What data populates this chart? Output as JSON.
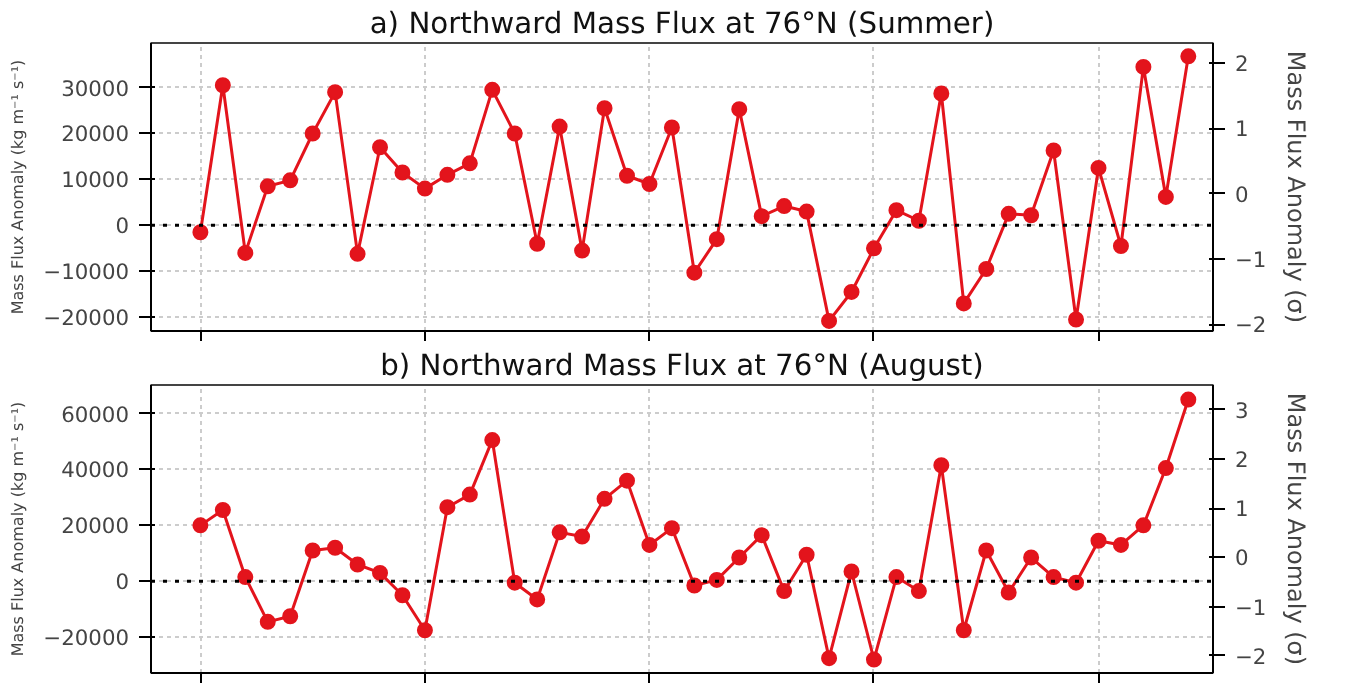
{
  "chart_data": [
    {
      "type": "line",
      "title": "a) Northward Mass Flux at 76°N (Summer)",
      "ylabel": "Mass Flux Anomaly (kg m⁻¹ s⁻¹)",
      "y2label": "Mass Flux Anomaly (σ)",
      "categories": [
        null,
        null,
        null,
        null,
        null,
        null,
        null,
        null,
        null,
        null,
        null,
        null,
        null,
        null,
        null,
        null,
        null,
        null,
        null,
        null,
        null,
        null,
        null,
        null,
        null,
        null,
        null,
        null,
        null,
        null,
        null,
        null,
        null,
        null,
        null,
        null,
        null,
        null,
        null,
        null,
        null,
        null,
        null,
        null,
        null
      ],
      "series": [
        {
          "color": "#e3141c",
          "values": [
            -1500,
            30500,
            -6000,
            8500,
            9800,
            20000,
            29000,
            -6200,
            17000,
            11500,
            8000,
            11000,
            13500,
            29500,
            20000,
            -4000,
            21500,
            -5500,
            25500,
            10800,
            9000,
            21300,
            -10300,
            -3000,
            25300,
            2000,
            4200,
            3000,
            -20800,
            -14500,
            -5000,
            3300,
            1000,
            28700,
            -17000,
            -9500,
            2500,
            2200,
            16300,
            -20500,
            12500,
            -4500,
            34500,
            6200,
            36800
          ]
        }
      ],
      "ylim": [
        -23000,
        39700
      ],
      "yticks": [
        -20000,
        -10000,
        0,
        10000,
        20000,
        30000
      ],
      "y2lim": [
        -2.1,
        2.3
      ],
      "y2ticks": [
        -2,
        -1,
        0,
        1,
        2
      ],
      "ref_lines": [
        {
          "axis": "y",
          "value": 0,
          "color": "#000000",
          "line_style": "dotted"
        }
      ],
      "grid": true,
      "marker": "circle",
      "line_style": "solid"
    },
    {
      "type": "line",
      "title": "b) Northward Mass Flux at 76°N (August)",
      "ylabel": "Mass Flux Anomaly (kg m⁻¹ s⁻¹)",
      "y2label": "Mass Flux Anomaly (σ)",
      "categories": [
        null,
        null,
        null,
        null,
        null,
        null,
        null,
        null,
        null,
        null,
        null,
        null,
        null,
        null,
        null,
        null,
        null,
        null,
        null,
        null,
        null,
        null,
        null,
        null,
        null,
        null,
        null,
        null,
        null,
        null,
        null,
        null,
        null,
        null,
        null,
        null,
        null,
        null,
        null,
        null,
        null,
        null,
        null,
        null,
        null
      ],
      "series": [
        {
          "color": "#e3141c",
          "values": [
            20000,
            25500,
            1500,
            -14500,
            -12500,
            11000,
            12000,
            6000,
            3000,
            -5000,
            -17500,
            26500,
            31000,
            50500,
            -500,
            -6500,
            17500,
            16000,
            29500,
            36000,
            13000,
            19000,
            -1500,
            500,
            8500,
            16500,
            -3500,
            9500,
            -27500,
            3500,
            -28000,
            1500,
            -3500,
            41500,
            -17500,
            11000,
            -4000,
            8500,
            1500,
            -500,
            14500,
            13000,
            20000,
            40500,
            65000
          ]
        }
      ],
      "ylim": [
        -32800,
        70200
      ],
      "yticks": [
        -20000,
        0,
        20000,
        40000,
        60000
      ],
      "y2lim": [
        -2.35,
        3.5
      ],
      "y2ticks": [
        -2,
        -1,
        0,
        1,
        2,
        3
      ],
      "ref_lines": [
        {
          "axis": "y",
          "value": 0,
          "color": "#000000",
          "line_style": "dotted"
        }
      ],
      "grid": true,
      "marker": "circle",
      "line_style": "solid"
    }
  ]
}
